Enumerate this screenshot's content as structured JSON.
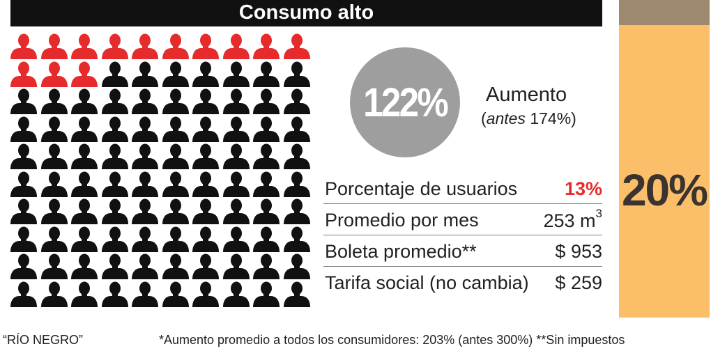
{
  "header": {
    "title": "Consumo alto"
  },
  "chart_data": {
    "type": "pictogram",
    "title": "Consumo alto",
    "total_icons": 100,
    "highlighted_icons": 13,
    "highlight_color": "#e52b2b",
    "base_color": "#111111",
    "icon": "person-icon"
  },
  "increase": {
    "value": "122%",
    "label": "Aumento",
    "previous_prefix": "(",
    "previous_italic": "antes",
    "previous_rest": " 174%)"
  },
  "stats": [
    {
      "label": "Porcentaje de usuarios",
      "value": "13%",
      "highlight": true
    },
    {
      "label": "Promedio por mes",
      "value": "253 m",
      "sup": "3"
    },
    {
      "label": "Boleta promedio**",
      "value": "$ 953"
    },
    {
      "label": "Tarifa social (no cambia)",
      "value": "$ 259"
    }
  ],
  "side_bar": {
    "value": "20%",
    "fill_color": "#fbbf6a",
    "cap_color": "#9d8a6e"
  },
  "footer": {
    "source": "“RÍO NEGRO”",
    "note": "*Aumento promedio a todos los consumidores: 203% (antes 300%) **Sin impuestos"
  }
}
